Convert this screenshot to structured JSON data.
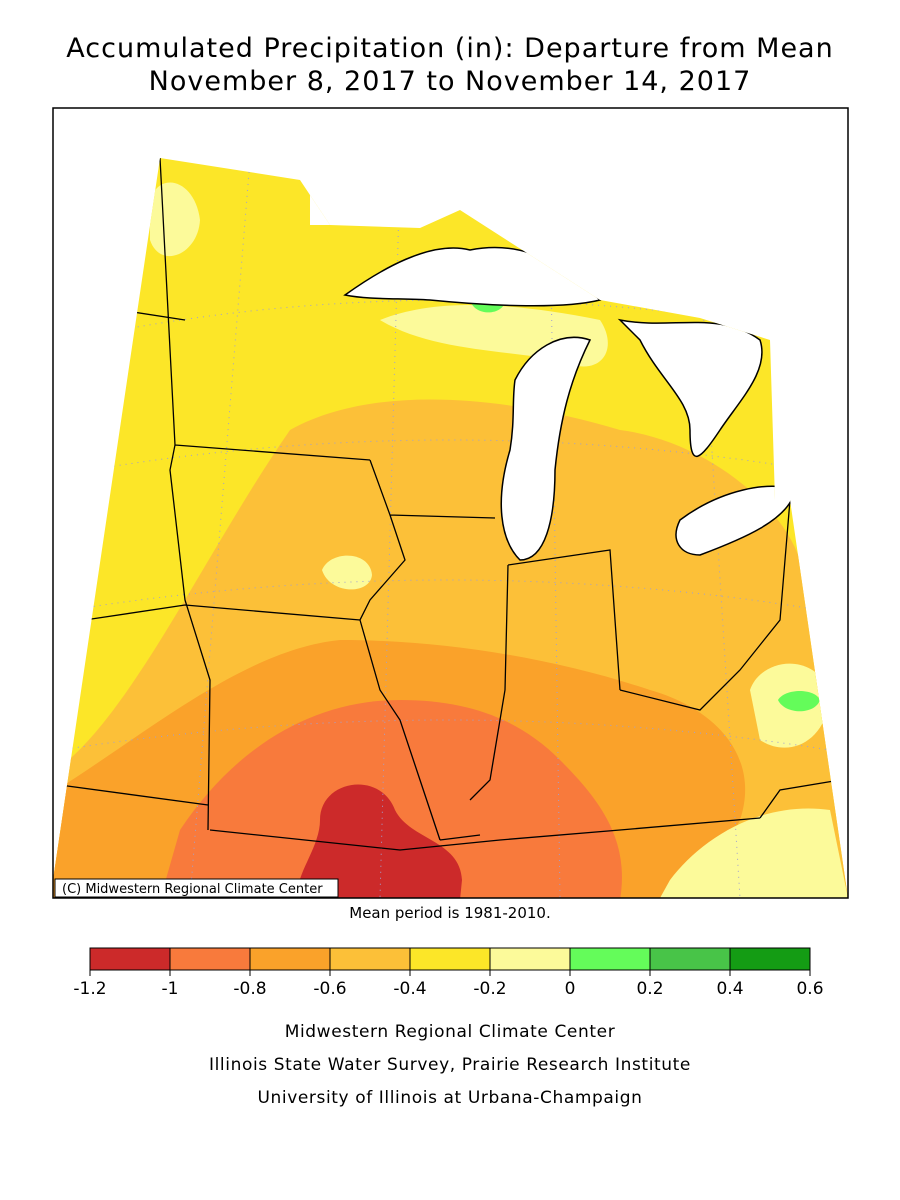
{
  "title": "Accumulated Precipitation (in): Departure from Mean",
  "subtitle": "November 8, 2017 to November 14, 2017",
  "copyright": "(C) Midwestern Regional Climate Center",
  "note": "Mean period is 1981-2010.",
  "legend": {
    "ticks": [
      -1.2,
      -1,
      -0.8,
      -0.6,
      -0.4,
      -0.2,
      0,
      0.2,
      0.4,
      0.6
    ],
    "colors": [
      "#cc2a2a",
      "#f87a3c",
      "#faa22a",
      "#fcc038",
      "#fce628",
      "#fcfa9a",
      "#64fc5a",
      "#48c448",
      "#149c14"
    ]
  },
  "footer": [
    "Midwestern Regional Climate Center",
    "Illinois State Water Survey, Prairie Research Institute",
    "University of Illinois at Urbana-Champaign"
  ]
}
